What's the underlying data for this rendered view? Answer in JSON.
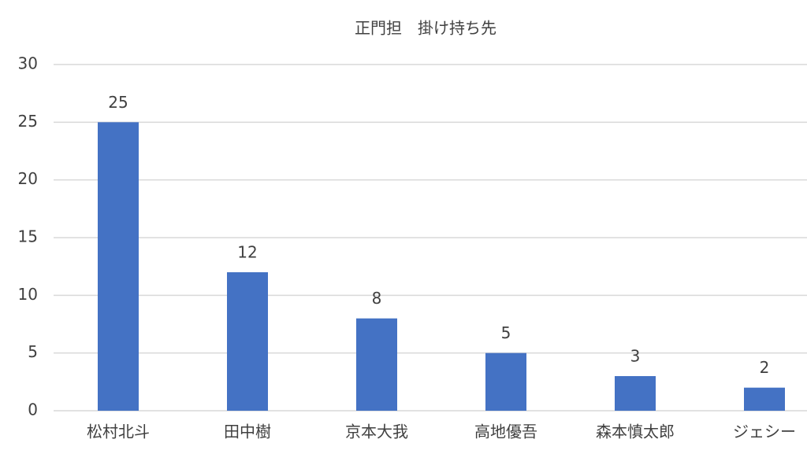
{
  "chart_data": {
    "type": "bar",
    "title": "正門担　掛け持ち先",
    "categories": [
      "松村北斗",
      "田中樹",
      "京本大我",
      "高地優吾",
      "森本慎太郎",
      "ジェシー"
    ],
    "values": [
      25,
      12,
      8,
      5,
      3,
      2
    ],
    "color": "#4472c4",
    "ylim": [
      0,
      30
    ],
    "yticks": [
      0,
      5,
      10,
      15,
      20,
      25,
      30
    ],
    "grid": true
  }
}
